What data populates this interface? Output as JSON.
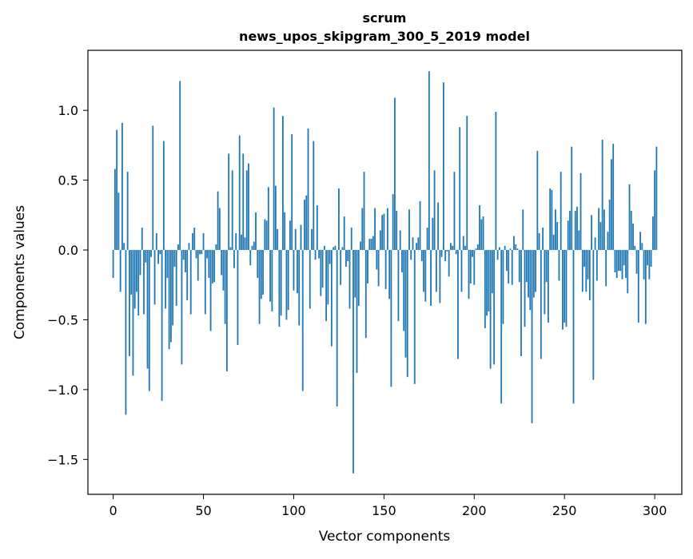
{
  "chart_data": {
    "type": "bar",
    "title": "scrum",
    "subtitle": "news_upos_skipgram_300_5_2019 model",
    "xlabel": "Vector components",
    "ylabel": "Components values",
    "xlim": [
      -14,
      315
    ],
    "ylim": [
      -1.75,
      1.43
    ],
    "xticks": [
      0,
      50,
      100,
      150,
      200,
      250,
      300
    ],
    "yticks": [
      -1.5,
      -1.0,
      -0.5,
      0.0,
      0.5,
      1.0
    ],
    "ytick_labels": [
      "−1.5",
      "−1.0",
      "−0.5",
      "0.0",
      "0.5",
      "1.0"
    ],
    "bar_color": "#1f77b4",
    "grid": false,
    "values": [
      -0.2,
      0.58,
      0.86,
      0.41,
      -0.3,
      0.91,
      0.05,
      -1.18,
      0.56,
      -0.76,
      -0.32,
      -0.9,
      -0.42,
      -0.3,
      -0.47,
      -0.18,
      0.16,
      -0.46,
      -0.09,
      -0.85,
      -1.01,
      -0.05,
      0.89,
      -0.39,
      0.12,
      -0.1,
      -0.03,
      -1.08,
      0.78,
      -0.42,
      -0.2,
      -0.71,
      -0.66,
      -0.54,
      -0.12,
      -0.4,
      0.04,
      1.21,
      -0.82,
      -0.07,
      -0.16,
      -0.36,
      0.05,
      -0.46,
      0.12,
      0.16,
      -0.06,
      -0.22,
      -0.03,
      -0.03,
      0.12,
      -0.46,
      -0.06,
      -0.2,
      -0.58,
      -0.24,
      -0.23,
      0.04,
      0.42,
      0.3,
      -0.18,
      -0.29,
      -0.53,
      -0.87,
      0.69,
      0.02,
      0.57,
      -0.13,
      0.12,
      -0.68,
      0.82,
      0.11,
      0.69,
      0.09,
      0.57,
      0.62,
      -0.11,
      0.03,
      0.06,
      0.27,
      -0.2,
      -0.53,
      -0.35,
      -0.32,
      0.22,
      0.21,
      0.45,
      -0.37,
      -0.44,
      1.02,
      0.46,
      0.15,
      -0.55,
      -0.47,
      0.96,
      0.27,
      -0.5,
      -0.43,
      0.21,
      0.83,
      -0.29,
      0.15,
      -0.31,
      -0.54,
      0.18,
      -1.01,
      0.36,
      0.39,
      0.87,
      -0.42,
      0.15,
      0.78,
      -0.07,
      0.32,
      -0.06,
      -0.33,
      -0.27,
      0.03,
      -0.51,
      -0.39,
      -0.1,
      -0.69,
      0.02,
      0.03,
      -1.12,
      0.44,
      -0.25,
      0.02,
      0.24,
      -0.12,
      -0.08,
      -0.42,
      0.16,
      -1.6,
      -0.34,
      -0.88,
      -0.4,
      0.06,
      0.3,
      0.56,
      -0.63,
      -0.24,
      0.08,
      0.08,
      0.1,
      0.3,
      -0.14,
      -0.26,
      0.14,
      0.25,
      0.26,
      -0.28,
      0.3,
      -0.35,
      -0.98,
      0.4,
      1.09,
      0.28,
      -0.51,
      0.14,
      -0.16,
      -0.58,
      -0.77,
      -0.91,
      0.29,
      -0.07,
      0.09,
      -0.96,
      0.05,
      0.09,
      0.35,
      -0.08,
      -0.3,
      -0.37,
      0.16,
      1.28,
      -0.4,
      0.23,
      0.57,
      -0.3,
      0.34,
      -0.38,
      -0.05,
      1.2,
      -0.08,
      -0.01,
      -0.19,
      0.05,
      0.03,
      0.56,
      -0.03,
      -0.78,
      0.88,
      -0.3,
      0.1,
      0.03,
      0.96,
      -0.35,
      -0.24,
      -0.05,
      -0.25,
      0.01,
      0.04,
      0.32,
      0.22,
      0.24,
      -0.56,
      -0.47,
      -0.44,
      -0.85,
      -0.31,
      -0.82,
      0.99,
      -0.07,
      0.02,
      -1.1,
      -0.53,
      0.03,
      -0.15,
      -0.24,
      0.01,
      -0.25,
      0.1,
      0.04,
      0.01,
      -0.23,
      -0.76,
      0.29,
      -0.55,
      -0.23,
      -0.34,
      -0.43,
      -1.24,
      -0.34,
      -0.3,
      0.71,
      0.12,
      -0.78,
      0.16,
      -0.46,
      -0.23,
      -0.52,
      0.44,
      0.43,
      0.11,
      0.29,
      0.2,
      -0.22,
      0.56,
      -0.57,
      -0.52,
      -0.55,
      0.21,
      0.28,
      0.74,
      -1.1,
      0.28,
      0.31,
      0.14,
      0.55,
      -0.3,
      -0.12,
      -0.3,
      -0.21,
      -0.36,
      0.25,
      -0.93,
      0.09,
      -0.22,
      0.3,
      0.2,
      0.79,
      0.29,
      -0.26,
      0.13,
      0.36,
      0.65,
      0.76,
      -0.16,
      -0.2,
      -0.15,
      -0.15,
      -0.21,
      -0.11,
      -0.2,
      -0.31,
      0.47,
      0.28,
      0.19,
      0.03,
      -0.17,
      -0.52,
      0.13,
      0.05,
      -0.21,
      -0.53,
      -0.11,
      -0.21,
      -0.12,
      0.24,
      0.57,
      0.74
    ]
  }
}
